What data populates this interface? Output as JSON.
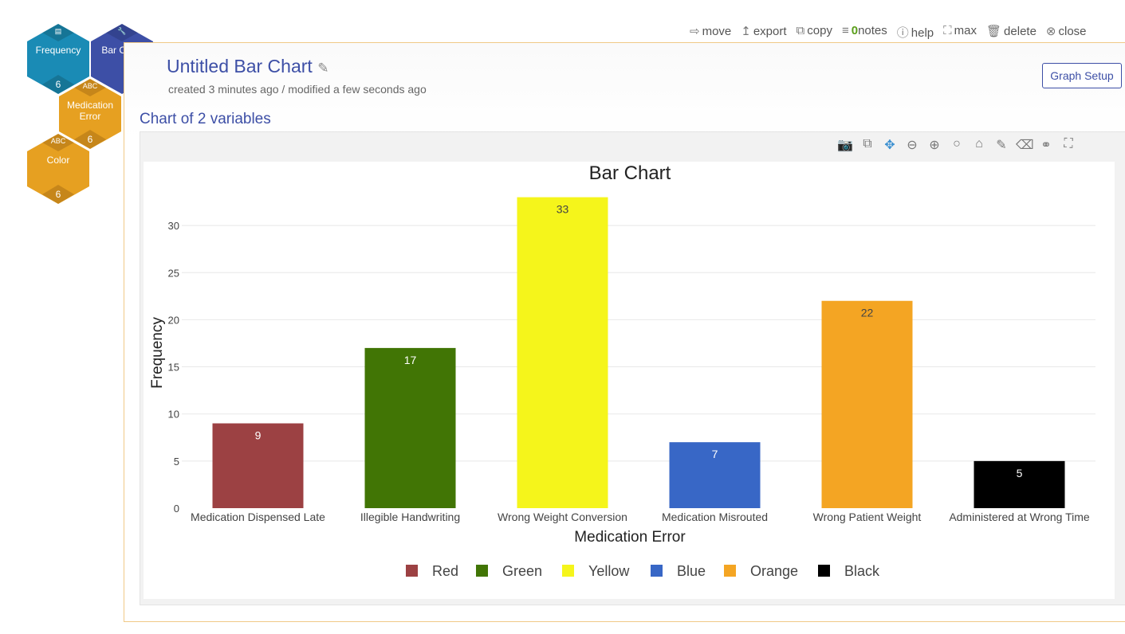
{
  "nodes": [
    {
      "label": "Frequency",
      "icon": "bar-chart-icon",
      "count": "6"
    },
    {
      "label": "Bar Chart",
      "icon": "wrench-icon"
    },
    {
      "label": "Medication Error",
      "icon": "ABC",
      "count": "6"
    },
    {
      "label": "Color",
      "icon": "ABC",
      "count": "6"
    }
  ],
  "toolbar": {
    "move": "move",
    "export": "export",
    "copy": "copy",
    "notes_count": "0",
    "notes": "notes",
    "help": "help",
    "max": "max",
    "delete": "delete",
    "close": "close"
  },
  "header": {
    "title": "Untitled Bar Chart",
    "subtitle": "created 3 minutes ago / modified a few seconds ago",
    "setup": "Graph Setup"
  },
  "section_title": "Chart of 2 variables",
  "colors": {
    "accent": "#3d4fa6",
    "border": "#f0c987"
  },
  "chart_data": {
    "type": "bar",
    "title": "Bar Chart",
    "xlabel": "Medication Error",
    "ylabel": "Frequency",
    "ylim": [
      0,
      33
    ],
    "yticks": [
      0,
      5,
      10,
      15,
      20,
      25,
      30
    ],
    "grid": true,
    "legend_position": "bottom",
    "categories": [
      "Medication Dispensed Late",
      "Illegible Handwriting",
      "Wrong Weight Conversion",
      "Medication Misrouted",
      "Wrong Patient Weight",
      "Administered at Wrong Time"
    ],
    "values": [
      9,
      17,
      33,
      7,
      22,
      5
    ],
    "series_names": [
      "Red",
      "Green",
      "Yellow",
      "Blue",
      "Orange",
      "Black"
    ],
    "bar_colors": [
      "#9c4143",
      "#417505",
      "#f5f51b",
      "#3867c6",
      "#f4a523",
      "#000000"
    ],
    "label_colors": [
      "#ffffff",
      "#ffffff",
      "#444444",
      "#ffffff",
      "#444444",
      "#ffffff"
    ]
  }
}
